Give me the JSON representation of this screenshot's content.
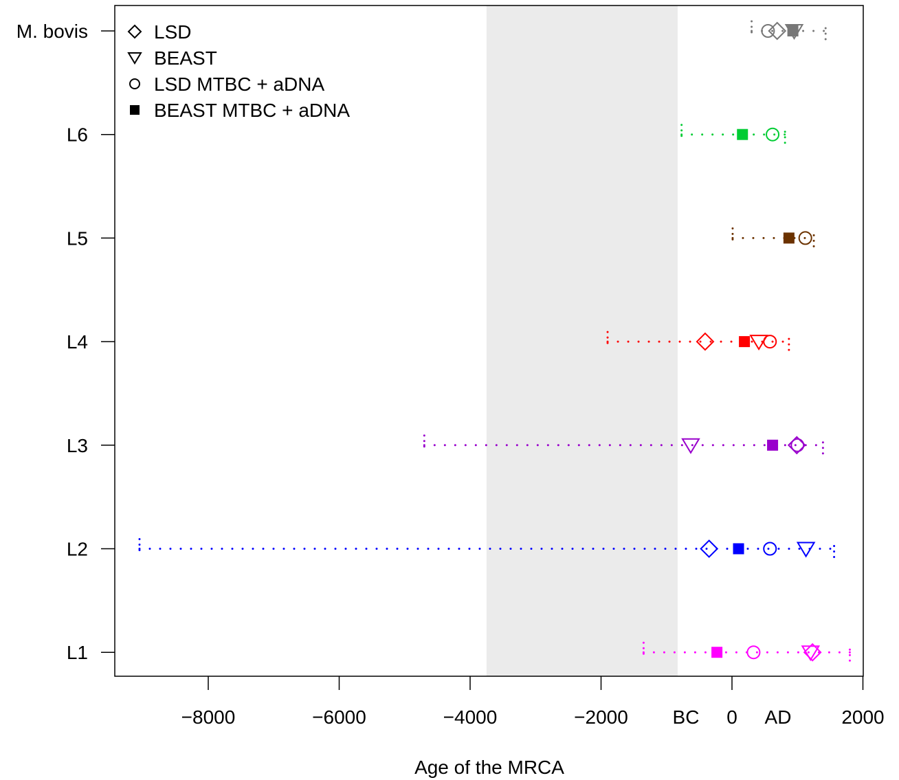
{
  "chart_data": {
    "type": "scatter",
    "xlabel": "Age of the MRCA",
    "x_ticks": [
      -8000,
      -6000,
      -4000,
      -2000,
      0,
      2000
    ],
    "x_tick_labels": [
      "−8000",
      "−6000",
      "−4000",
      "−2000",
      "0",
      "2000"
    ],
    "era_labels": {
      "bc": "BC",
      "ad": "AD"
    },
    "xlim": [
      -9400,
      2000
    ],
    "shaded_region": [
      -3750,
      -830
    ],
    "shaded_color": "#ebebeb",
    "legend_position": "top-left",
    "legend": [
      {
        "label": "LSD",
        "symbol": "diamond-open"
      },
      {
        "label": "BEAST",
        "symbol": "triangle-down-open"
      },
      {
        "label": "LSD MTBC + aDNA",
        "symbol": "circle-open"
      },
      {
        "label": "BEAST MTBC + aDNA",
        "symbol": "square-filled"
      }
    ],
    "lineages": [
      {
        "name": "M. bovis",
        "color": "#777777",
        "ci": [
          300,
          1430
        ],
        "lsd": 690,
        "beast": 950,
        "lsd_adna": 550,
        "beast_adna": 930
      },
      {
        "name": "L6",
        "color": "#00cc33",
        "ci": [
          -770,
          810
        ],
        "lsd_adna": 620,
        "beast_adna": 160
      },
      {
        "name": "L5",
        "color": "#6b3200",
        "ci": [
          10,
          1250
        ],
        "lsd_adna": 1120,
        "beast_adna": 870
      },
      {
        "name": "L4",
        "color": "#ff0000",
        "ci": [
          -1900,
          870
        ],
        "lsd": -410,
        "beast": 410,
        "lsd_adna": 580,
        "beast_adna": 190
      },
      {
        "name": "L3",
        "color": "#9900cc",
        "ci": [
          -4700,
          1390
        ],
        "lsd": 990,
        "beast": -630,
        "lsd_adna": 1000,
        "beast_adna": 620
      },
      {
        "name": "L2",
        "color": "#0000ff",
        "ci": [
          -9050,
          1560
        ],
        "lsd": -350,
        "beast": 1130,
        "lsd_adna": 580,
        "beast_adna": 100
      },
      {
        "name": "L1",
        "color": "#ff00ff",
        "ci": [
          -1350,
          1800
        ],
        "lsd": 1230,
        "beast": 1200,
        "lsd_adna": 330,
        "beast_adna": -230
      }
    ]
  }
}
